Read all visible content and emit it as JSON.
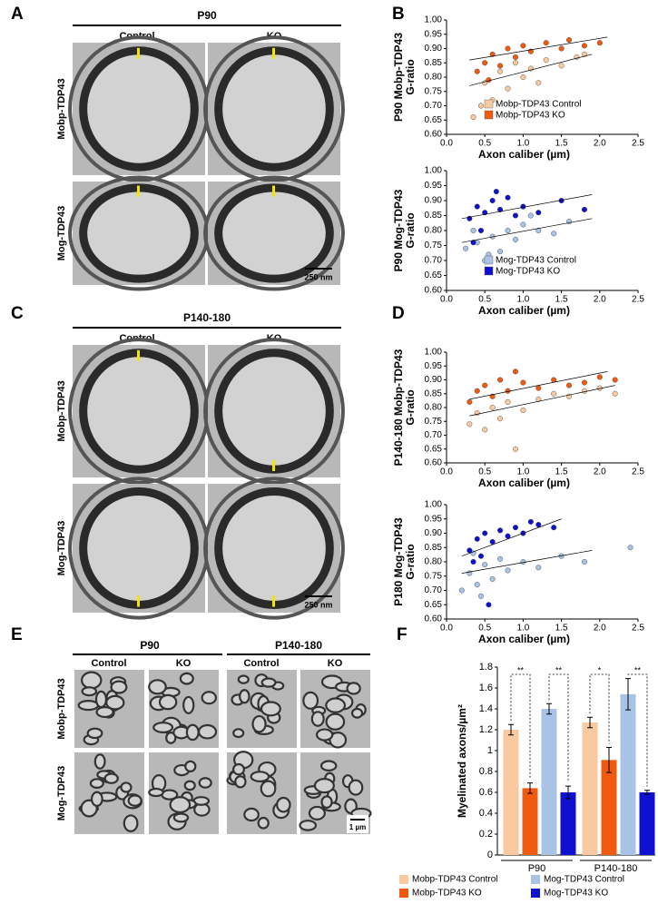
{
  "panel_labels": [
    "A",
    "B",
    "C",
    "D",
    "E",
    "F"
  ],
  "panel_a": {
    "header": "P90",
    "columns": [
      "Control",
      "KO"
    ],
    "rows": [
      "Mobp-TDP43",
      "Mog-TDP43"
    ],
    "scale_bar": "250 nm"
  },
  "panel_c": {
    "header": "P140-180",
    "columns": [
      "Control",
      "KO"
    ],
    "rows": [
      "Mobp-TDP43",
      "Mog-TDP43"
    ],
    "scale_bar": "250 nm"
  },
  "panel_e": {
    "headers": [
      "P90",
      "P140-180"
    ],
    "columns": [
      "Control",
      "KO",
      "Control",
      "KO"
    ],
    "rows": [
      "Mobp-TDP43",
      "Mog-TDP43"
    ],
    "scale_bar": "1 µm"
  },
  "chart_data": [
    {
      "type": "scatter",
      "title": "P90 Mobp-TDP43",
      "ylabel": "G-ratio",
      "xlabel": "Axon caliber (µm)",
      "xlim": [
        0,
        2.5
      ],
      "xticks": [
        {
          "value": 0,
          "label": "0.0"
        },
        0.5,
        {
          "value": 1,
          "label": "1.0"
        },
        1.5,
        {
          "value": 2,
          "label": "2.0"
        },
        2.5
      ],
      "ylim": [
        0.6,
        1
      ],
      "yticks": [
        {
          "value": 0.6,
          "label": "0.60"
        },
        {
          "value": 0.65,
          "label": "0.65"
        },
        {
          "value": 0.7,
          "label": "0.70"
        },
        {
          "value": 0.75,
          "label": "0.75"
        },
        {
          "value": 0.8,
          "label": "0.80"
        },
        {
          "value": 0.85,
          "label": "0.85"
        },
        {
          "value": 0.9,
          "label": "0.90"
        },
        {
          "value": 0.95,
          "label": "0.95"
        },
        {
          "value": 1,
          "label": "1.00"
        }
      ],
      "legend_position": "lower right",
      "series": [
        {
          "name": "Mobp-TDP43 Control",
          "color": "#f9c9a0",
          "x": [
            0.35,
            0.5,
            0.6,
            0.7,
            0.8,
            0.9,
            1.0,
            1.1,
            1.2,
            1.3,
            1.5,
            1.7,
            1.8,
            0.45
          ],
          "y": [
            0.66,
            0.78,
            0.72,
            0.82,
            0.76,
            0.85,
            0.8,
            0.83,
            0.78,
            0.86,
            0.84,
            0.87,
            0.88,
            0.7
          ],
          "trend_x": [
            0.3,
            1.9
          ],
          "trend_y": [
            0.77,
            0.88
          ]
        },
        {
          "name": "Mobp-TDP43 KO",
          "color": "#f05a0f",
          "x": [
            0.4,
            0.5,
            0.6,
            0.7,
            0.8,
            0.9,
            1.0,
            1.1,
            1.3,
            1.5,
            1.6,
            1.8,
            2.0,
            0.55
          ],
          "y": [
            0.82,
            0.85,
            0.88,
            0.84,
            0.9,
            0.87,
            0.91,
            0.89,
            0.92,
            0.9,
            0.93,
            0.91,
            0.92,
            0.79
          ],
          "trend_x": [
            0.3,
            2.1
          ],
          "trend_y": [
            0.86,
            0.94
          ]
        }
      ]
    },
    {
      "type": "scatter",
      "title": "P90 Mog-TDP43",
      "ylabel": "G-ratio",
      "xlabel": "Axon caliber (µm)",
      "xlim": [
        0,
        2.5
      ],
      "xticks": [
        {
          "value": 0,
          "label": "0.0"
        },
        0.5,
        {
          "value": 1,
          "label": "1.0"
        },
        1.5,
        {
          "value": 2,
          "label": "2.0"
        },
        2.5
      ],
      "ylim": [
        0.6,
        1
      ],
      "yticks": [
        {
          "value": 0.6,
          "label": "0.60"
        },
        {
          "value": 0.65,
          "label": "0.65"
        },
        {
          "value": 0.7,
          "label": "0.70"
        },
        {
          "value": 0.75,
          "label": "0.75"
        },
        {
          "value": 0.8,
          "label": "0.80"
        },
        {
          "value": 0.85,
          "label": "0.85"
        },
        {
          "value": 0.9,
          "label": "0.90"
        },
        {
          "value": 0.95,
          "label": "0.95"
        },
        {
          "value": 1,
          "label": "1.00"
        }
      ],
      "legend_position": "lower right",
      "series": [
        {
          "name": "Mog-TDP43 Control",
          "color": "#a8c3e6",
          "x": [
            0.25,
            0.4,
            0.5,
            0.6,
            0.7,
            0.8,
            0.9,
            1.0,
            1.2,
            1.4,
            1.6,
            0.55,
            0.35,
            1.1
          ],
          "y": [
            0.74,
            0.76,
            0.7,
            0.78,
            0.73,
            0.8,
            0.77,
            0.82,
            0.8,
            0.79,
            0.83,
            0.72,
            0.8,
            0.85
          ],
          "trend_x": [
            0.2,
            1.9
          ],
          "trend_y": [
            0.76,
            0.84
          ]
        },
        {
          "name": "Mog-TDP43 KO",
          "color": "#1010d0",
          "x": [
            0.3,
            0.4,
            0.5,
            0.6,
            0.7,
            0.8,
            0.9,
            1.0,
            1.2,
            1.5,
            1.8,
            0.45,
            0.65,
            0.35
          ],
          "y": [
            0.84,
            0.88,
            0.86,
            0.9,
            0.87,
            0.91,
            0.85,
            0.88,
            0.86,
            0.9,
            0.87,
            0.8,
            0.93,
            0.76
          ],
          "trend_x": [
            0.2,
            1.9
          ],
          "trend_y": [
            0.84,
            0.92
          ]
        }
      ]
    },
    {
      "type": "scatter",
      "title": "P140-180 Mobp-TDP43",
      "ylabel": "G-ratio",
      "xlabel": "Axon caliber (µm)",
      "xlim": [
        0,
        2.5
      ],
      "xticks": [
        {
          "value": 0,
          "label": "0.0"
        },
        0.5,
        {
          "value": 1,
          "label": "1.0"
        },
        1.5,
        {
          "value": 2,
          "label": "2.0"
        },
        2.5
      ],
      "ylim": [
        0.6,
        1
      ],
      "yticks": [
        {
          "value": 0.6,
          "label": "0.60"
        },
        {
          "value": 0.65,
          "label": "0.65"
        },
        {
          "value": 0.7,
          "label": "0.70"
        },
        {
          "value": 0.75,
          "label": "0.75"
        },
        {
          "value": 0.8,
          "label": "0.80"
        },
        {
          "value": 0.85,
          "label": "0.85"
        },
        {
          "value": 0.9,
          "label": "0.90"
        },
        {
          "value": 0.95,
          "label": "0.95"
        },
        {
          "value": 1,
          "label": "1.00"
        }
      ],
      "series": [
        {
          "color": "#f9c9a0",
          "x": [
            0.3,
            0.4,
            0.5,
            0.6,
            0.7,
            0.8,
            1.0,
            1.2,
            1.4,
            1.6,
            1.8,
            2.0,
            2.2,
            0.9
          ],
          "y": [
            0.74,
            0.78,
            0.72,
            0.8,
            0.76,
            0.82,
            0.79,
            0.83,
            0.85,
            0.84,
            0.86,
            0.87,
            0.85,
            0.65
          ],
          "trend_x": [
            0.3,
            2.2
          ],
          "trend_y": [
            0.77,
            0.88
          ]
        },
        {
          "color": "#f05a0f",
          "x": [
            0.3,
            0.4,
            0.5,
            0.6,
            0.7,
            0.8,
            1.0,
            1.2,
            1.4,
            1.6,
            1.8,
            2.0,
            2.2,
            0.9
          ],
          "y": [
            0.82,
            0.86,
            0.88,
            0.84,
            0.9,
            0.86,
            0.89,
            0.87,
            0.9,
            0.88,
            0.89,
            0.91,
            0.9,
            0.93
          ],
          "trend_x": [
            0.3,
            2.1
          ],
          "trend_y": [
            0.83,
            0.93
          ]
        }
      ]
    },
    {
      "type": "scatter",
      "title": "P180 Mog-TDP43",
      "ylabel": "G-ratio",
      "xlabel": "Axon caliber (µm)",
      "xlim": [
        0,
        2.5
      ],
      "xticks": [
        {
          "value": 0,
          "label": "0.0"
        },
        0.5,
        {
          "value": 1,
          "label": "1.0"
        },
        1.5,
        {
          "value": 2,
          "label": "2.0"
        },
        2.5
      ],
      "ylim": [
        0.6,
        1
      ],
      "yticks": [
        {
          "value": 0.6,
          "label": "0.60"
        },
        {
          "value": 0.65,
          "label": "0.65"
        },
        {
          "value": 0.7,
          "label": "0.70"
        },
        {
          "value": 0.75,
          "label": "0.75"
        },
        {
          "value": 0.8,
          "label": "0.80"
        },
        {
          "value": 0.85,
          "label": "0.85"
        },
        {
          "value": 0.9,
          "label": "0.90"
        },
        {
          "value": 0.95,
          "label": "0.95"
        },
        {
          "value": 1,
          "label": "1.00"
        }
      ],
      "series": [
        {
          "color": "#a8c3e6",
          "x": [
            0.2,
            0.3,
            0.4,
            0.5,
            0.6,
            0.7,
            0.8,
            1.0,
            1.2,
            1.5,
            1.8,
            2.4,
            0.45,
            0.35
          ],
          "y": [
            0.7,
            0.76,
            0.72,
            0.79,
            0.74,
            0.81,
            0.77,
            0.8,
            0.78,
            0.82,
            0.8,
            0.85,
            0.68,
            0.83
          ],
          "trend_x": [
            0.2,
            1.9
          ],
          "trend_y": [
            0.76,
            0.84
          ]
        },
        {
          "color": "#1010d0",
          "x": [
            0.3,
            0.4,
            0.5,
            0.6,
            0.7,
            0.8,
            0.9,
            1.0,
            1.2,
            1.4,
            0.45,
            0.55,
            0.35,
            1.1
          ],
          "y": [
            0.84,
            0.88,
            0.9,
            0.87,
            0.91,
            0.89,
            0.92,
            0.9,
            0.93,
            0.92,
            0.82,
            0.65,
            0.8,
            0.94
          ],
          "trend_x": [
            0.2,
            1.5
          ],
          "trend_y": [
            0.82,
            0.95
          ]
        }
      ]
    },
    {
      "type": "bar",
      "ylabel": "Myelinated axons/µm²",
      "categories": [
        "P90",
        "P140-180"
      ],
      "ylim": [
        0,
        1.8
      ],
      "yticks": [
        0,
        0.2,
        0.4,
        0.6,
        0.8,
        1,
        1.2,
        1.4,
        1.6,
        1.8
      ],
      "legend_position": "bottom",
      "series": [
        {
          "name": "Mobp-TDP43 Control",
          "color": "#f9c9a0",
          "values": [
            1.2,
            1.27
          ],
          "errors": [
            0.05,
            0.05
          ]
        },
        {
          "name": "Mobp-TDP43 KO",
          "color": "#f05a0f",
          "values": [
            0.64,
            0.91
          ],
          "errors": [
            0.05,
            0.12
          ]
        },
        {
          "name": "Mog-TDP43 Control",
          "color": "#a8c3e6",
          "values": [
            1.4,
            1.54
          ],
          "errors": [
            0.05,
            0.15
          ]
        },
        {
          "name": "Mog-TDP43 KO",
          "color": "#1010d0",
          "values": [
            0.6,
            0.6
          ],
          "errors": [
            0.06,
            0.02
          ]
        }
      ],
      "significance": [
        [
          "**",
          "**"
        ],
        [
          "*",
          "**"
        ]
      ]
    }
  ]
}
